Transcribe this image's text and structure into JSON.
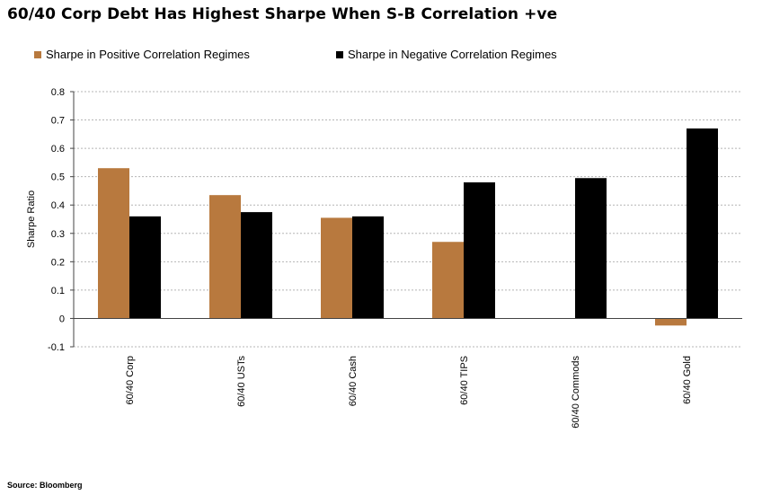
{
  "title": "60/40 Corp Debt Has Highest Sharpe When S-B Correlation +ve",
  "source": "Source: Bloomberg",
  "chart_data": {
    "type": "bar",
    "title": "60/40 Corp Debt Has Highest Sharpe When S-B Correlation +ve",
    "xlabel": "",
    "ylabel": "Sharpe Ratio",
    "ylim": [
      -0.1,
      0.8
    ],
    "yticks": [
      -0.1,
      0,
      0.1,
      0.2,
      0.3,
      0.4,
      0.5,
      0.6,
      0.7,
      0.8
    ],
    "ytick_labels": [
      "-0.1",
      "0",
      "0.1",
      "0.2",
      "0.3",
      "0.4",
      "0.5",
      "0.6",
      "0.7",
      "0.8"
    ],
    "grid": true,
    "legend_position": "top",
    "categories": [
      "60/40 Corp",
      "60/40 USTs",
      "60/40 Cash",
      "60/40 TIPS",
      "60/40 Commods",
      "60/40 Gold"
    ],
    "series": [
      {
        "name": "Sharpe in Positive Correlation Regimes",
        "color": "#b8793e",
        "values": [
          0.53,
          0.435,
          0.355,
          0.27,
          0.0,
          -0.025
        ]
      },
      {
        "name": "Sharpe in Negative Correlation Regimes",
        "color": "#000000",
        "values": [
          0.36,
          0.375,
          0.36,
          0.48,
          0.495,
          0.67
        ]
      }
    ]
  }
}
